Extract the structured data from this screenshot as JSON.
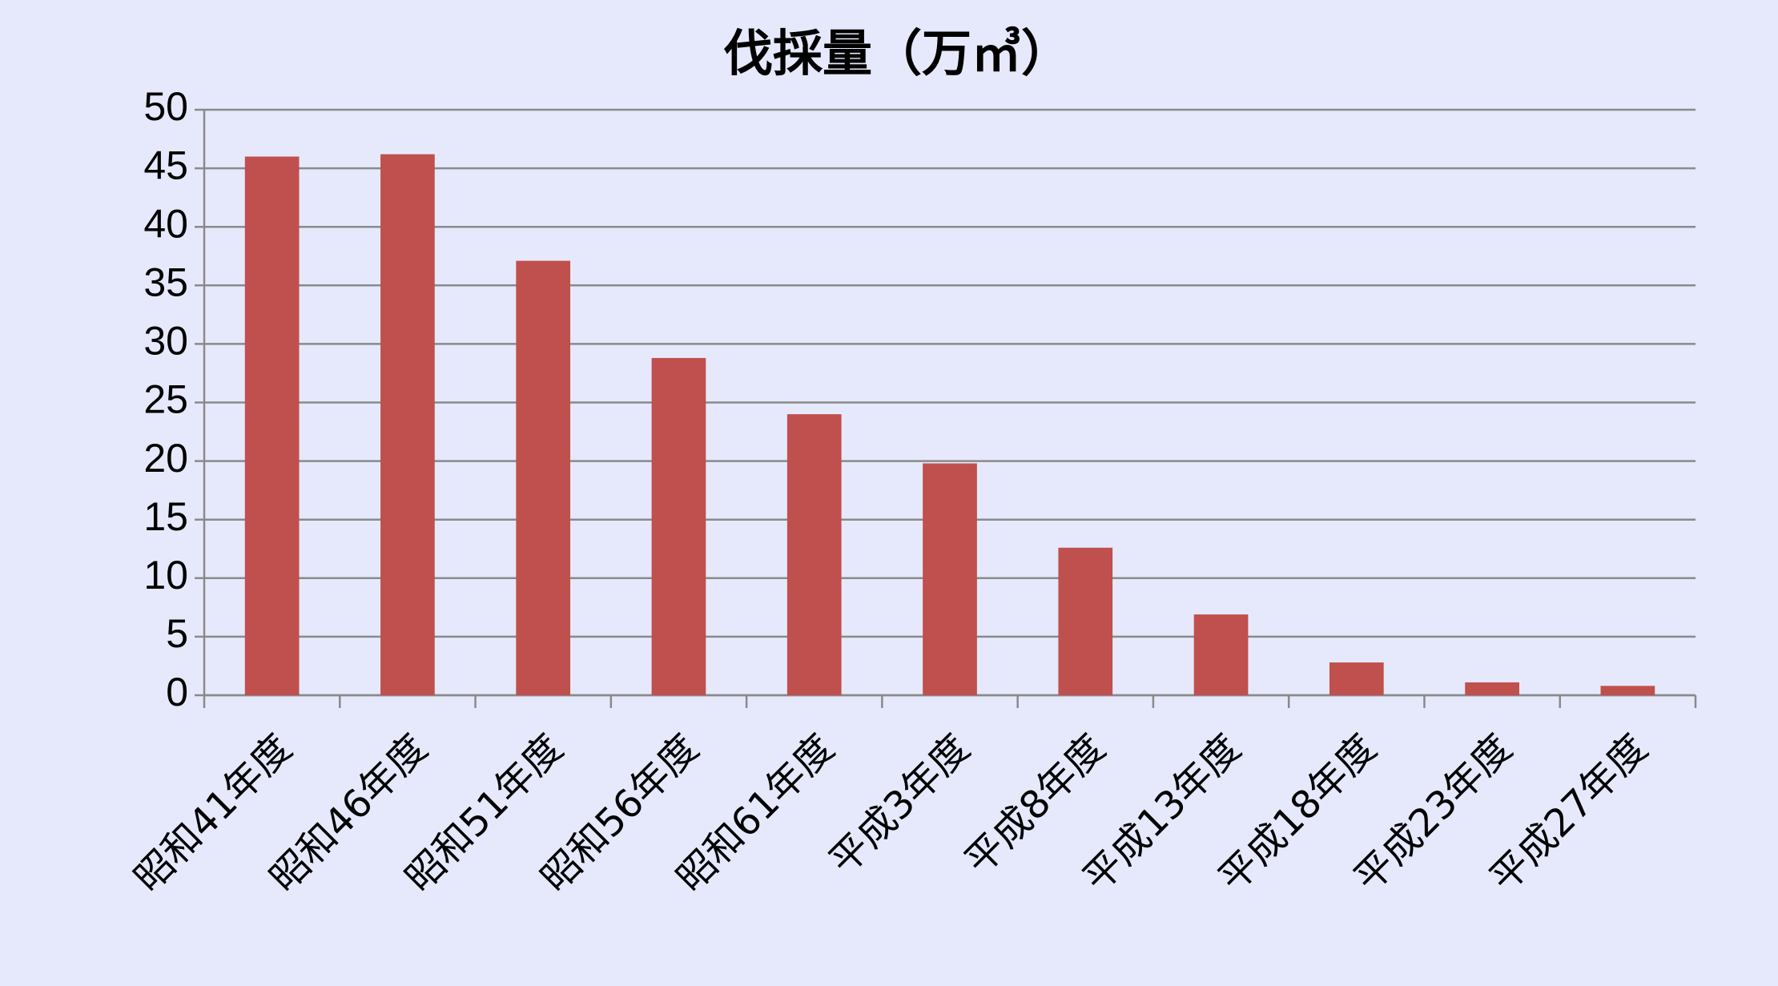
{
  "chart_data": {
    "type": "bar",
    "title": "伐採量（万㎥）",
    "categories": [
      "昭和41年度",
      "昭和46年度",
      "昭和51年度",
      "昭和56年度",
      "昭和61年度",
      "平成3年度",
      "平成8年度",
      "平成13年度",
      "平成18年度",
      "平成23年度",
      "平成27年度"
    ],
    "values": [
      46,
      46.2,
      37.1,
      28.8,
      24,
      19.8,
      12.6,
      6.9,
      2.8,
      1.1,
      0.8
    ],
    "color": "#c0504d",
    "ylim": [
      0,
      50
    ],
    "yticks": [
      0,
      5,
      10,
      15,
      20,
      25,
      30,
      35,
      40,
      45,
      50
    ],
    "grid": true
  }
}
